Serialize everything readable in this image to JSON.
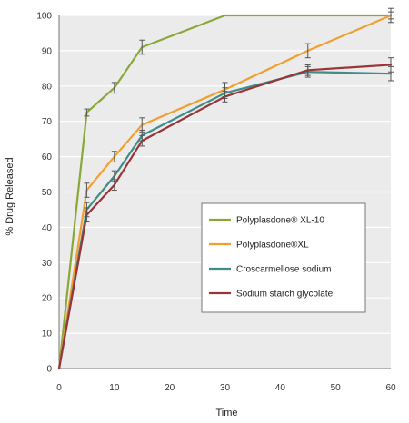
{
  "chart_data": {
    "type": "line",
    "title": "",
    "xlabel": "Time",
    "ylabel": "% Drug Released",
    "xlim": [
      0,
      60
    ],
    "ylim": [
      0,
      100
    ],
    "x_ticks": [
      0,
      10,
      20,
      30,
      40,
      50,
      60
    ],
    "y_ticks": [
      0,
      10,
      20,
      30,
      40,
      50,
      60,
      70,
      80,
      90,
      100
    ],
    "grid": "horizontal",
    "legend_position": "lower-right",
    "series": [
      {
        "name": "Polyplasdone® XL-10",
        "color": "#8aa83a",
        "x": [
          0,
          5,
          10,
          15,
          30,
          45,
          60
        ],
        "y": [
          0,
          72.5,
          79.5,
          91,
          100,
          100,
          100
        ],
        "err": [
          0,
          1,
          1.5,
          2,
          0,
          0,
          1
        ]
      },
      {
        "name": "Polyplasdone®XL",
        "color": "#f0a030",
        "x": [
          0,
          5,
          10,
          15,
          30,
          45,
          60
        ],
        "y": [
          0,
          50.5,
          60,
          69,
          79,
          90,
          100
        ],
        "err": [
          0,
          2,
          1.5,
          2,
          2,
          2,
          2
        ]
      },
      {
        "name": "Croscarmellose sodium",
        "color": "#3f8c88",
        "x": [
          0,
          5,
          10,
          15,
          30,
          45,
          60
        ],
        "y": [
          0,
          45,
          54.5,
          66,
          78,
          84,
          83.5
        ],
        "err": [
          0,
          2,
          1.5,
          1.5,
          1.5,
          1.5,
          2
        ]
      },
      {
        "name": "Sodium starch glycolate",
        "color": "#9a3438",
        "x": [
          0,
          5,
          10,
          15,
          30,
          45,
          60
        ],
        "y": [
          0,
          43.5,
          52,
          64.5,
          77,
          84.5,
          86
        ],
        "err": [
          0,
          2,
          1.5,
          1.5,
          1.5,
          1.5,
          2
        ]
      }
    ]
  }
}
